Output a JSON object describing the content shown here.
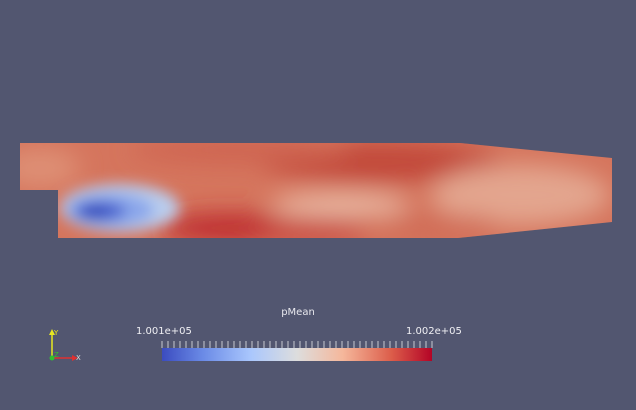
{
  "colorbar": {
    "title": "pMean",
    "min_label": "1.001e+05",
    "max_label": "1.002e+05",
    "min_color": "#3b4cc0",
    "mid_color": "#dddddd",
    "max_color": "#b40426"
  },
  "axes": {
    "x_label": "X",
    "y_label": "Y",
    "z_label": "Z",
    "x_color": "#e03030",
    "y_color": "#e8e820",
    "z_color": "#30c030"
  },
  "colors": {
    "background": "#525670"
  }
}
